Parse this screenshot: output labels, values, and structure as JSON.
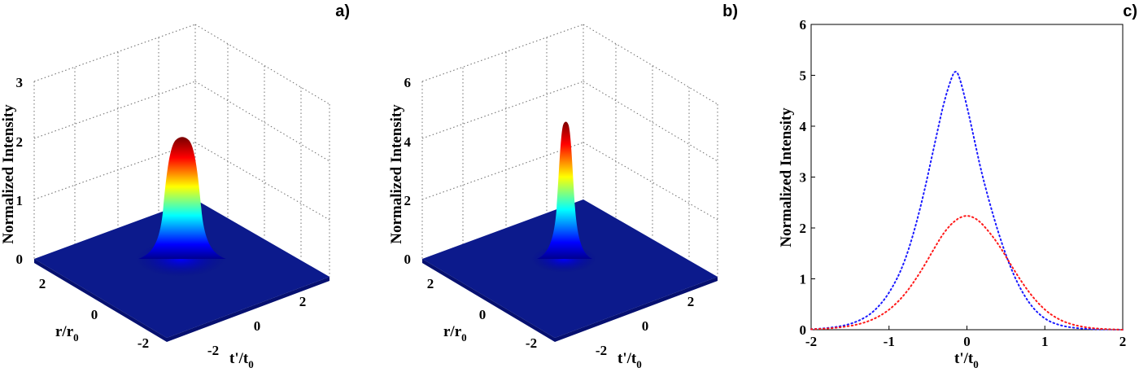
{
  "chart_data": [
    {
      "type": "surface3d",
      "panel_label": "a)",
      "zlabel": "Normalized Intensity",
      "xlabel": "t'/t",
      "xlabel_sub": "0",
      "ylabel": "r/r",
      "ylabel_sub": "0",
      "x_ticks": [
        "-2",
        "0",
        "2"
      ],
      "y_ticks": [
        "2",
        "0",
        "-2"
      ],
      "z_ticks": [
        "0",
        "1",
        "2",
        "3"
      ],
      "zlim": [
        0,
        3
      ],
      "peak": 2.1,
      "width_t": 0.75,
      "width_r": 0.55,
      "colormap": "jet"
    },
    {
      "type": "surface3d",
      "panel_label": "b)",
      "zlabel": "Normalized Intensity",
      "xlabel": "t'/t",
      "xlabel_sub": "0",
      "ylabel": "r/r",
      "ylabel_sub": "0",
      "x_ticks": [
        "-2",
        "0",
        "2"
      ],
      "y_ticks": [
        "2",
        "0",
        "-2"
      ],
      "z_ticks": [
        "0",
        "2",
        "4",
        "6"
      ],
      "zlim": [
        0,
        6
      ],
      "peak": 5.1,
      "width_t": 0.55,
      "width_r": 0.4,
      "colormap": "jet"
    },
    {
      "type": "line",
      "panel_label": "c)",
      "ylabel": "Normalized Intensity",
      "xlabel": "t'/t",
      "xlabel_sub": "0",
      "xlim": [
        -2,
        2
      ],
      "ylim": [
        0,
        6
      ],
      "x_ticks": [
        "-2",
        "-1",
        "0",
        "1",
        "2"
      ],
      "y_ticks": [
        "0",
        "1",
        "2",
        "3",
        "4",
        "5",
        "6"
      ],
      "x": [
        -2.0,
        -1.8,
        -1.6,
        -1.4,
        -1.2,
        -1.0,
        -0.8,
        -0.6,
        -0.4,
        -0.3,
        -0.2,
        -0.15,
        -0.1,
        0.0,
        0.1,
        0.2,
        0.4,
        0.6,
        0.8,
        1.0,
        1.2,
        1.4,
        1.6,
        1.8,
        2.0
      ],
      "series": [
        {
          "color": "#1a1aff",
          "style": "dotted",
          "values": [
            0.01,
            0.03,
            0.07,
            0.16,
            0.34,
            0.7,
            1.3,
            2.35,
            3.75,
            4.45,
            4.95,
            5.1,
            5.0,
            4.4,
            3.7,
            3.0,
            1.9,
            1.05,
            0.5,
            0.2,
            0.08,
            0.03,
            0.01,
            0.005,
            0.0
          ]
        },
        {
          "color": "#ff1a1a",
          "style": "dotted",
          "values": [
            0.01,
            0.02,
            0.05,
            0.1,
            0.2,
            0.38,
            0.68,
            1.12,
            1.65,
            1.9,
            2.08,
            2.14,
            2.2,
            2.25,
            2.2,
            2.08,
            1.7,
            1.18,
            0.72,
            0.38,
            0.18,
            0.08,
            0.03,
            0.01,
            0.0
          ]
        }
      ]
    }
  ]
}
